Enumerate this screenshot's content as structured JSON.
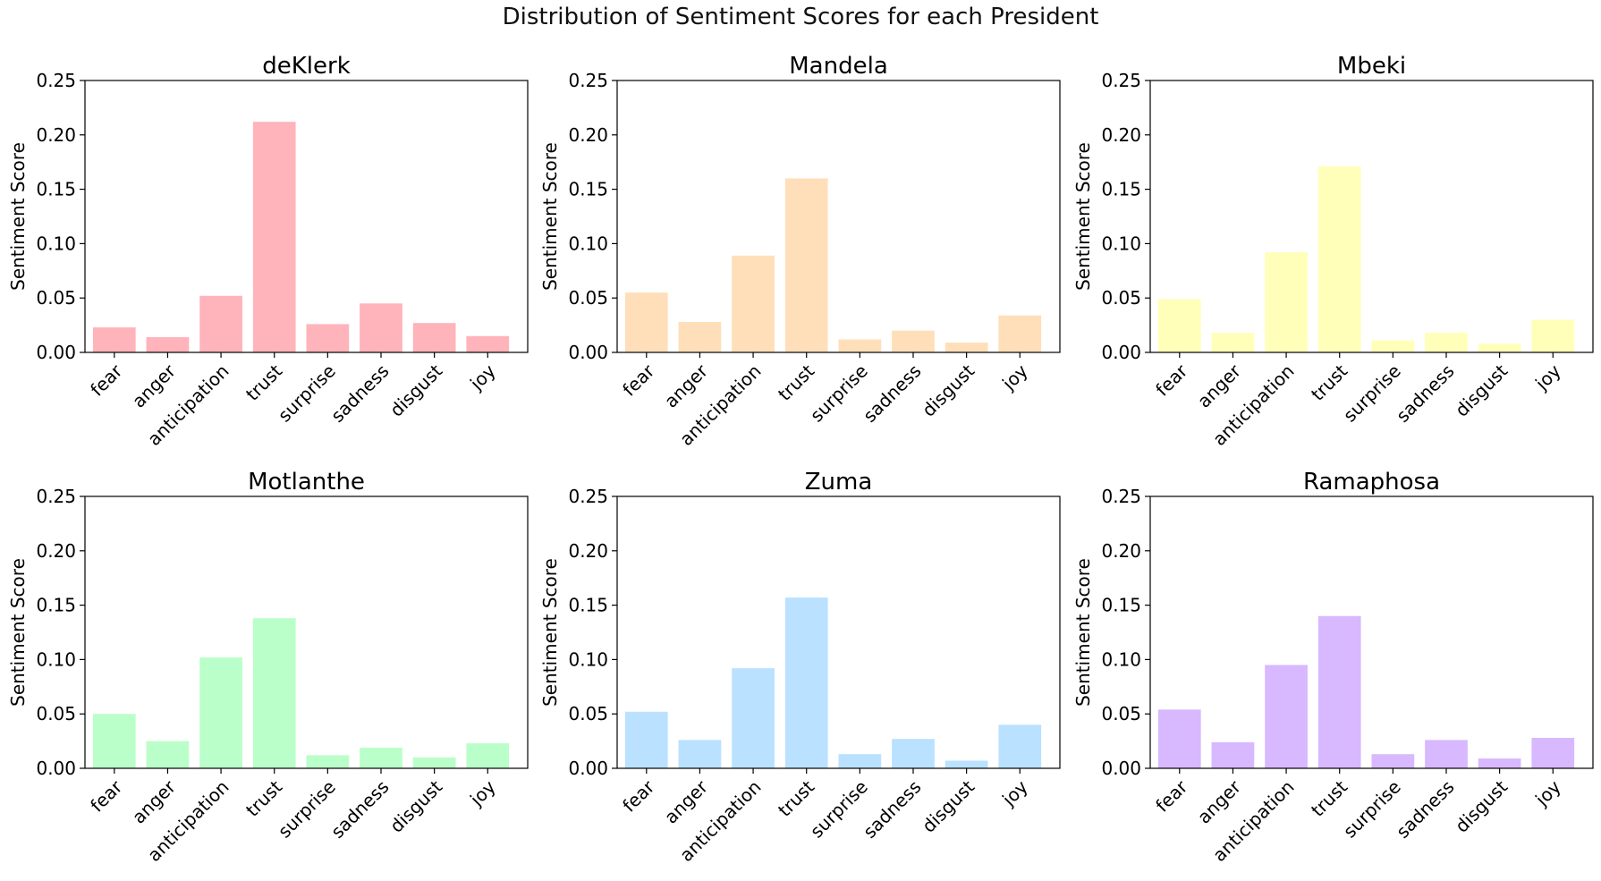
{
  "suptitle": "Distribution of Sentiment Scores for each President",
  "chart_data": [
    {
      "type": "bar",
      "title": "deKlerk",
      "ylabel": "Sentiment Score",
      "xlabel": "",
      "categories": [
        "fear",
        "anger",
        "anticipation",
        "trust",
        "surprise",
        "sadness",
        "disgust",
        "joy"
      ],
      "values": [
        0.023,
        0.014,
        0.052,
        0.212,
        0.026,
        0.045,
        0.027,
        0.015
      ],
      "ylim": [
        0,
        0.25
      ],
      "yticks": [
        "0.00",
        "0.05",
        "0.10",
        "0.15",
        "0.20",
        "0.25"
      ],
      "color": "#ffb3ba",
      "grid": false
    },
    {
      "type": "bar",
      "title": "Mandela",
      "ylabel": "Sentiment Score",
      "xlabel": "",
      "categories": [
        "fear",
        "anger",
        "anticipation",
        "trust",
        "surprise",
        "sadness",
        "disgust",
        "joy"
      ],
      "values": [
        0.055,
        0.028,
        0.089,
        0.16,
        0.012,
        0.02,
        0.009,
        0.034
      ],
      "ylim": [
        0,
        0.25
      ],
      "yticks": [
        "0.00",
        "0.05",
        "0.10",
        "0.15",
        "0.20",
        "0.25"
      ],
      "color": "#ffdfba",
      "grid": false
    },
    {
      "type": "bar",
      "title": "Mbeki",
      "ylabel": "Sentiment Score",
      "xlabel": "",
      "categories": [
        "fear",
        "anger",
        "anticipation",
        "trust",
        "surprise",
        "sadness",
        "disgust",
        "joy"
      ],
      "values": [
        0.049,
        0.018,
        0.092,
        0.171,
        0.011,
        0.018,
        0.008,
        0.03
      ],
      "ylim": [
        0,
        0.25
      ],
      "yticks": [
        "0.00",
        "0.05",
        "0.10",
        "0.15",
        "0.20",
        "0.25"
      ],
      "color": "#ffffba",
      "grid": false
    },
    {
      "type": "bar",
      "title": "Motlanthe",
      "ylabel": "Sentiment Score",
      "xlabel": "",
      "categories": [
        "fear",
        "anger",
        "anticipation",
        "trust",
        "surprise",
        "sadness",
        "disgust",
        "joy"
      ],
      "values": [
        0.05,
        0.025,
        0.102,
        0.138,
        0.012,
        0.019,
        0.01,
        0.023
      ],
      "ylim": [
        0,
        0.25
      ],
      "yticks": [
        "0.00",
        "0.05",
        "0.10",
        "0.15",
        "0.20",
        "0.25"
      ],
      "color": "#baffc9",
      "grid": false
    },
    {
      "type": "bar",
      "title": "Zuma",
      "ylabel": "Sentiment Score",
      "xlabel": "",
      "categories": [
        "fear",
        "anger",
        "anticipation",
        "trust",
        "surprise",
        "sadness",
        "disgust",
        "joy"
      ],
      "values": [
        0.052,
        0.026,
        0.092,
        0.157,
        0.013,
        0.027,
        0.007,
        0.04
      ],
      "ylim": [
        0,
        0.25
      ],
      "yticks": [
        "0.00",
        "0.05",
        "0.10",
        "0.15",
        "0.20",
        "0.25"
      ],
      "color": "#bae1ff",
      "grid": false
    },
    {
      "type": "bar",
      "title": "Ramaphosa",
      "ylabel": "Sentiment Score",
      "xlabel": "",
      "categories": [
        "fear",
        "anger",
        "anticipation",
        "trust",
        "surprise",
        "sadness",
        "disgust",
        "joy"
      ],
      "values": [
        0.054,
        0.024,
        0.095,
        0.14,
        0.013,
        0.026,
        0.009,
        0.028
      ],
      "ylim": [
        0,
        0.25
      ],
      "yticks": [
        "0.00",
        "0.05",
        "0.10",
        "0.15",
        "0.20",
        "0.25"
      ],
      "color": "#d8b8ff",
      "grid": false
    }
  ]
}
